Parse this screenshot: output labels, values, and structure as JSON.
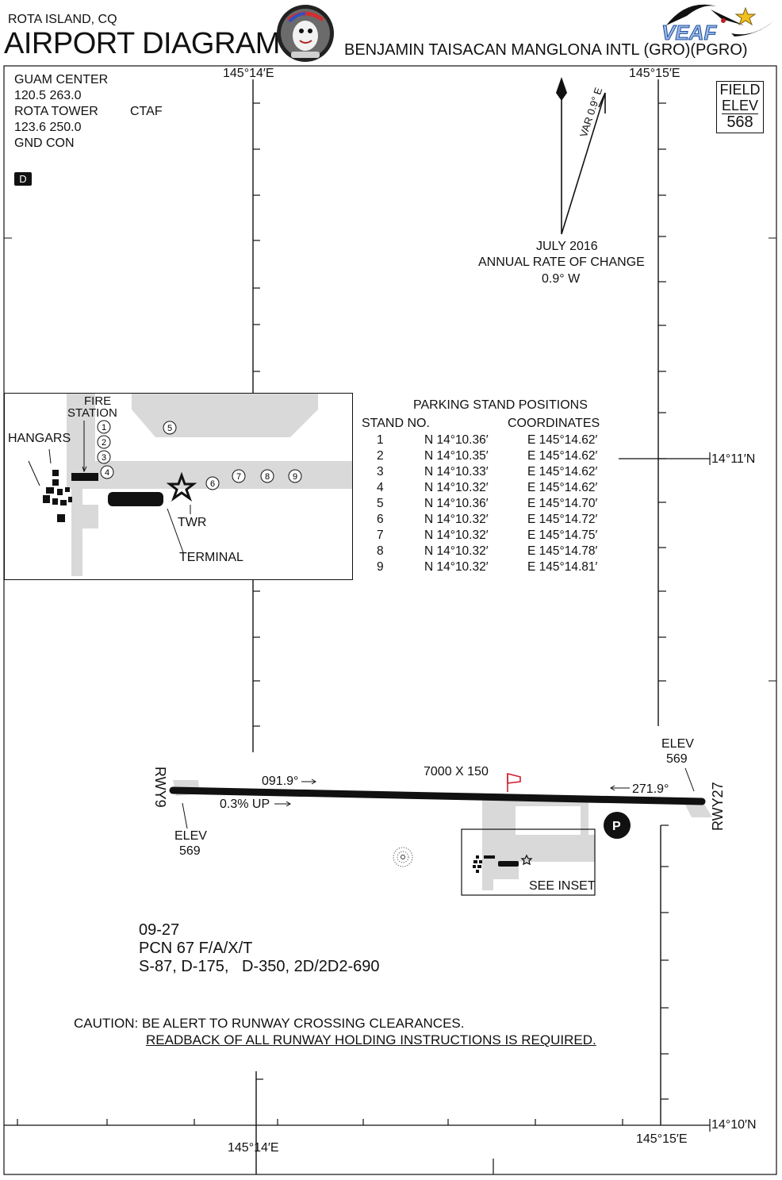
{
  "header": {
    "location": "ROTA ISLAND, CQ",
    "title": "AIRPORT DIAGRAM",
    "airport_name": "BENJAMIN TAISACAN MANGLONA INTL (GRO)(PGRO)",
    "logo_text": "VEAF"
  },
  "frequencies": {
    "lines": [
      "GUAM CENTER",
      "120.5   263.0",
      "ROTA TOWER",
      "123.6  250.0",
      "GND CON"
    ],
    "ctaf": "CTAF",
    "d_badge": "D"
  },
  "field_elev": {
    "label1": "FIELD",
    "label2": "ELEV",
    "value": "568"
  },
  "magvar": {
    "var_label": "VAR 0.9° E",
    "date": "JULY 2016",
    "rate_label": "ANNUAL RATE OF CHANGE",
    "rate_value": "0.9° W"
  },
  "graticule": {
    "lon_west": "145°14′E",
    "lon_east": "145°15′E",
    "lat_north": "14°11′N",
    "lat_south": "14°10′N"
  },
  "inset": {
    "fire_station": [
      "FIRE",
      "STATION"
    ],
    "hangars": "HANGARS",
    "twr": "TWR",
    "terminal": "TERMINAL",
    "stand_labels": [
      "1",
      "2",
      "3",
      "4",
      "5",
      "6",
      "7",
      "8",
      "9"
    ]
  },
  "parking": {
    "title": "PARKING STAND POSITIONS",
    "col_stand": "STAND NO.",
    "col_coords": "COORDINATES",
    "rows": [
      {
        "no": "1",
        "lat": "N 14°10.36′",
        "lon": "E 145°14.62′"
      },
      {
        "no": "2",
        "lat": "N 14°10.35′",
        "lon": "E 145°14.62′"
      },
      {
        "no": "3",
        "lat": "N 14°10.33′",
        "lon": "E 145°14.62′"
      },
      {
        "no": "4",
        "lat": "N 14°10.32′",
        "lon": "E 145°14.62′"
      },
      {
        "no": "5",
        "lat": "N 14°10.36′",
        "lon": "E 145°14.70′"
      },
      {
        "no": "6",
        "lat": "N 14°10.32′",
        "lon": "E 145°14.72′"
      },
      {
        "no": "7",
        "lat": "N 14°10.32′",
        "lon": "E 145°14.75′"
      },
      {
        "no": "8",
        "lat": "N 14°10.32′",
        "lon": "E 145°14.78′"
      },
      {
        "no": "9",
        "lat": "N 14°10.32′",
        "lon": "E 145°14.81′"
      }
    ]
  },
  "runway": {
    "dimensions": "7000 X 150",
    "rwy9": "RWY9",
    "rwy27": "RWY27",
    "hdg9": "091.9°",
    "hdg27": "271.9°",
    "gradient": "0.3% UP",
    "elev_label": "ELEV",
    "elev_west": "569",
    "elev_east": "569",
    "see_inset": "SEE INSET",
    "parking_symbol": "P"
  },
  "runway_data": {
    "designation": "09-27",
    "pcn": "PCN 67 F/A/X/T",
    "strength": "S-87, D-175,   D-350, 2D/2D2-690"
  },
  "caution": {
    "line1": "CAUTION: BE ALERT TO RUNWAY CROSSING CLEARANCES.",
    "line2": "READBACK OF ALL RUNWAY HOLDING INSTRUCTIONS IS REQUIRED."
  },
  "colors": {
    "ink": "#111111",
    "apron": "#d9d9d9",
    "windsock": "#d02030"
  }
}
